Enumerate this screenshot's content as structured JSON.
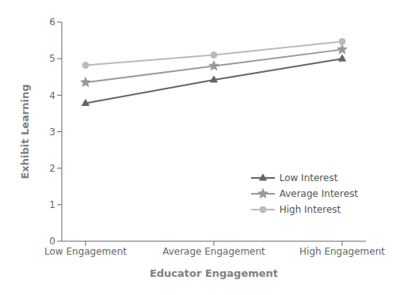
{
  "chart_data": {
    "type": "line",
    "xlabel": "Educator Engagement",
    "ylabel": "Exhibit Learning",
    "categories": [
      "Low Engagement",
      "Average Engagement",
      "High Engagement"
    ],
    "series": [
      {
        "name": "Low Interest",
        "color": "#666666",
        "marker": "triangle",
        "values": [
          3.78,
          4.42,
          5.0
        ]
      },
      {
        "name": "Average Interest",
        "color": "#999999",
        "marker": "star",
        "values": [
          4.35,
          4.8,
          5.25
        ]
      },
      {
        "name": "High Interest",
        "color": "#bbbbbb",
        "marker": "circle",
        "values": [
          4.82,
          5.1,
          5.47
        ]
      }
    ],
    "ylim": [
      0,
      6
    ],
    "yticks": [
      0,
      1,
      2,
      3,
      4,
      5,
      6
    ],
    "legend": "lower right",
    "grid": false
  }
}
